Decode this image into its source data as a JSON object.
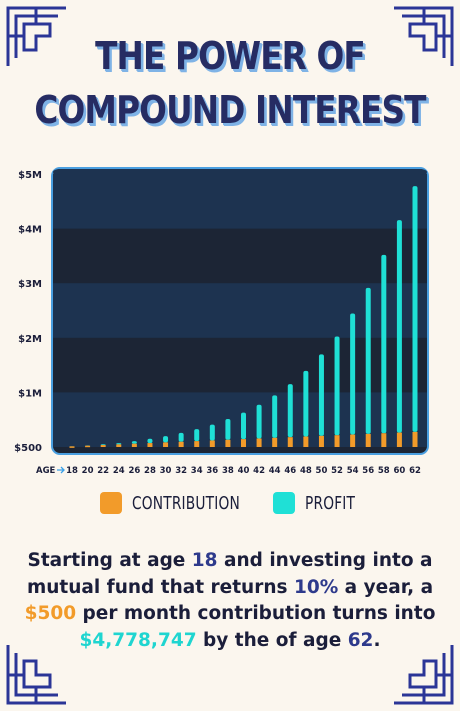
{
  "title": {
    "line1": "THE POWER OF",
    "line2": "COMPOUND INTEREST"
  },
  "colors": {
    "background": "#fbf6ee",
    "contribution": "#f29b2a",
    "profit": "#1fe0d6",
    "navy": "#262c63",
    "chart_bg_dark": "#1c2535",
    "chart_bg_band": "#1d3350",
    "chart_border": "#4a9fe0"
  },
  "chart_data": {
    "type": "bar",
    "stacked": true,
    "xlabel": "AGE",
    "categories": [
      "18",
      "20",
      "22",
      "24",
      "26",
      "28",
      "30",
      "32",
      "34",
      "36",
      "38",
      "40",
      "42",
      "44",
      "46",
      "48",
      "50",
      "52",
      "54",
      "56",
      "58",
      "60",
      "62"
    ],
    "series": [
      {
        "name": "CONTRIBUTION",
        "values": [
          12000,
          24000,
          36000,
          48000,
          60000,
          72000,
          84000,
          96000,
          108000,
          120000,
          132000,
          144000,
          156000,
          168000,
          180000,
          192000,
          204000,
          216000,
          228000,
          240000,
          252000,
          264000,
          276000
        ]
      },
      {
        "name": "PROFIT",
        "values": [
          1000,
          5000,
          14000,
          24000,
          48000,
          78000,
          116000,
          162000,
          220000,
          290000,
          380000,
          486000,
          618000,
          778000,
          972000,
          1202000,
          1492000,
          1808000,
          2218000,
          2674000,
          3266000,
          3892000,
          4502747
        ]
      }
    ],
    "yticks": [
      "$500",
      "$1M",
      "$2M",
      "$3M",
      "$4M",
      "$5M"
    ],
    "ylim": [
      0,
      5000000
    ],
    "grid": false
  },
  "legend": {
    "contribution_label": "CONTRIBUTION",
    "profit_label": "PROFIT"
  },
  "description": {
    "p1": "Starting at age ",
    "age_start": "18",
    "p2": " and investing into a mutual fund that returns ",
    "rate": "10%",
    "p3": " a year, a ",
    "monthly": "$500",
    "p4": " per month contribution turns into ",
    "total": "$4,778,747",
    "p5": " by the of age ",
    "age_end": "62",
    "p6": "."
  }
}
